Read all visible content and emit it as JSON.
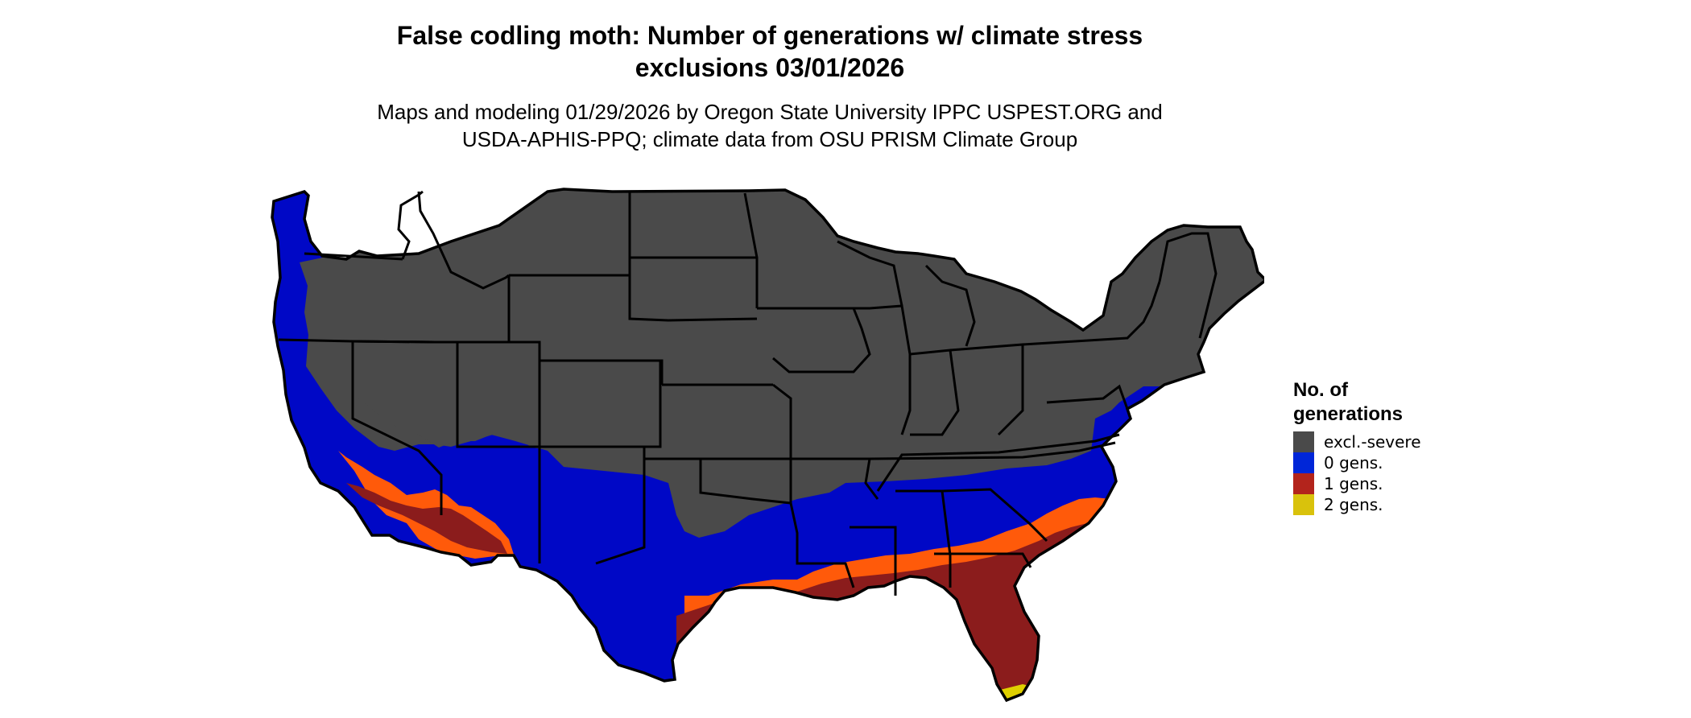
{
  "title": "False codling moth: Number of generations w/ climate stress\nexclusions 03/01/2026",
  "subtitle": "Maps and modeling 01/29/2026 by Oregon State University IPPC USPEST.ORG and\nUSDA-APHIS-PPQ; climate data from OSU PRISM Climate Group",
  "legend": {
    "title": "No. of\ngenerations",
    "items": [
      {
        "label": "excl.-severe",
        "color": "#4a4a4a"
      },
      {
        "label": "0 gens.",
        "color": "#0026d8"
      },
      {
        "label": "1 gens.",
        "color": "#b3241c"
      },
      {
        "label": "2 gens.",
        "color": "#d9c20c"
      }
    ]
  },
  "map": {
    "region": "Contiguous United States",
    "colors": {
      "excluded": "#4a4a4a",
      "zero": "#0008c6",
      "one_dark": "#8b1c1c",
      "one_orange": "#ff5a0a",
      "two": "#e0d000",
      "border": "#000000"
    }
  }
}
